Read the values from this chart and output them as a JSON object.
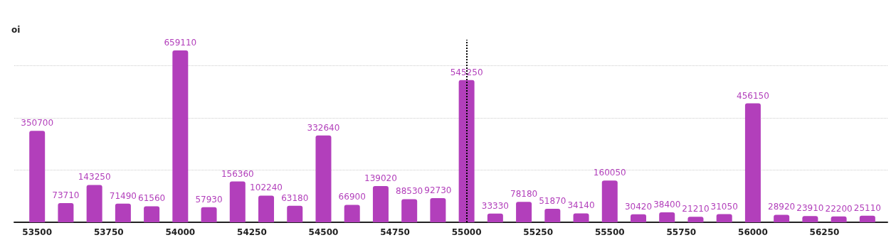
{
  "chart_data": {
    "type": "bar",
    "ylabel": "oi",
    "x": [
      53500,
      53600,
      53700,
      53800,
      53900,
      54000,
      54100,
      54200,
      54300,
      54400,
      54500,
      54600,
      54700,
      54800,
      54900,
      55000,
      55100,
      55200,
      55300,
      55400,
      55500,
      55600,
      55700,
      55800,
      55900,
      56000,
      56100,
      56200,
      56300,
      56400
    ],
    "values": [
      350700,
      73710,
      143250,
      71490,
      61560,
      659110,
      57930,
      156360,
      102240,
      63180,
      332640,
      66900,
      139020,
      88530,
      92730,
      545250,
      33330,
      78180,
      51870,
      34140,
      160050,
      30420,
      38400,
      21210,
      31050,
      456150,
      28920,
      23910,
      22200,
      25110
    ],
    "color": "#b23fbb",
    "data_labels": true,
    "xlim": [
      53420,
      56470
    ],
    "xticks": [
      53500,
      53750,
      54000,
      54250,
      54500,
      54750,
      55000,
      55250,
      55500,
      55750,
      56000,
      56250
    ],
    "ylim": [
      0,
      700000
    ],
    "yticks": [
      {
        "value": 0,
        "label": null
      },
      {
        "value": 200000,
        "label": null
      },
      {
        "value": 400000,
        "label": null
      },
      {
        "value": 600000,
        "label": null
      }
    ],
    "tick_labels": "x",
    "grid": "y",
    "ref_lines": [
      {
        "axis": "x",
        "value": 55000,
        "label": null,
        "color": "#000000",
        "line_style": "dotted"
      }
    ]
  }
}
